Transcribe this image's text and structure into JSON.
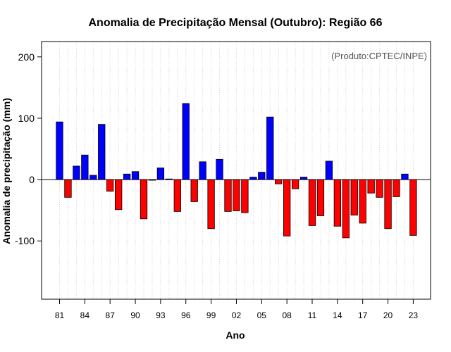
{
  "chart_data": {
    "type": "bar",
    "title": "Anomalia de Precipitação Mensal (Outubro): Região 66",
    "xlabel": "Ano",
    "ylabel": "Anomalia de precipitação (mm)",
    "source_note": "(Produto:CPTEC/INPE)",
    "ylim": [
      -195,
      225
    ],
    "yticks": [
      -100,
      0,
      100,
      200
    ],
    "ytick_labels": [
      "-100",
      "0",
      "100",
      "200"
    ],
    "grid": "vertical dotted",
    "x_tick_labels": [
      "81",
      "84",
      "87",
      "90",
      "93",
      "96",
      "99",
      "02",
      "05",
      "08",
      "11",
      "14",
      "17",
      "20",
      "23"
    ],
    "x_tick_every": 3,
    "categories": [
      "1981",
      "1982",
      "1983",
      "1984",
      "1985",
      "1986",
      "1987",
      "1988",
      "1989",
      "1990",
      "1991",
      "1992",
      "1993",
      "1994",
      "1995",
      "1996",
      "1997",
      "1998",
      "1999",
      "2000",
      "2001",
      "2002",
      "2003",
      "2004",
      "2005",
      "2006",
      "2007",
      "2008",
      "2009",
      "2010",
      "2011",
      "2012",
      "2013",
      "2014",
      "2015",
      "2016",
      "2017",
      "2018",
      "2019",
      "2020",
      "2021",
      "2022",
      "2023"
    ],
    "values": [
      94,
      -29,
      22,
      40,
      7,
      90,
      -19,
      -49,
      9,
      13,
      -64,
      -1,
      19,
      1,
      -52,
      124,
      -36,
      29,
      -80,
      33,
      -52,
      -51,
      -54,
      4,
      12,
      102,
      -7,
      -92,
      -15,
      4,
      -75,
      -59,
      30,
      -76,
      -95,
      -58,
      -71,
      -22,
      -29,
      -80,
      -28,
      9,
      -91
    ],
    "positive_color": "#0000ff",
    "negative_color": "#ff0000",
    "bar_outline_color": "#000000"
  }
}
